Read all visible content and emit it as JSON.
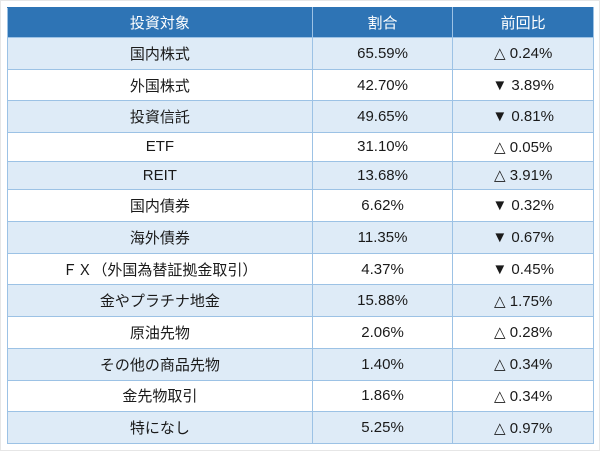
{
  "chart_data": {
    "type": "table",
    "columns": [
      "投資対象",
      "割合",
      "前回比"
    ],
    "rows": [
      {
        "name": "国内株式",
        "ratio": "65.59%",
        "change": "△ 0.24%",
        "ratio_value": 65.59,
        "change_value": 0.24,
        "direction": "up"
      },
      {
        "name": "外国株式",
        "ratio": "42.70%",
        "change": "▼ 3.89%",
        "ratio_value": 42.7,
        "change_value": -3.89,
        "direction": "down"
      },
      {
        "name": "投資信託",
        "ratio": "49.65%",
        "change": "▼ 0.81%",
        "ratio_value": 49.65,
        "change_value": -0.81,
        "direction": "down"
      },
      {
        "name": "ETF",
        "ratio": "31.10%",
        "change": "△ 0.05%",
        "ratio_value": 31.1,
        "change_value": 0.05,
        "direction": "up"
      },
      {
        "name": "REIT",
        "ratio": "13.68%",
        "change": "△ 3.91%",
        "ratio_value": 13.68,
        "change_value": 3.91,
        "direction": "up"
      },
      {
        "name": "国内債券",
        "ratio": "6.62%",
        "change": "▼ 0.32%",
        "ratio_value": 6.62,
        "change_value": -0.32,
        "direction": "down"
      },
      {
        "name": "海外債券",
        "ratio": "11.35%",
        "change": "▼ 0.67%",
        "ratio_value": 11.35,
        "change_value": -0.67,
        "direction": "down"
      },
      {
        "name": "ＦＸ（外国為替証拠金取引）",
        "ratio": "4.37%",
        "change": "▼ 0.45%",
        "ratio_value": 4.37,
        "change_value": -0.45,
        "direction": "down"
      },
      {
        "name": "金やプラチナ地金",
        "ratio": "15.88%",
        "change": "△ 1.75%",
        "ratio_value": 15.88,
        "change_value": 1.75,
        "direction": "up"
      },
      {
        "name": "原油先物",
        "ratio": "2.06%",
        "change": "△ 0.28%",
        "ratio_value": 2.06,
        "change_value": 0.28,
        "direction": "up"
      },
      {
        "name": "その他の商品先物",
        "ratio": "1.40%",
        "change": "△ 0.34%",
        "ratio_value": 1.4,
        "change_value": 0.34,
        "direction": "up"
      },
      {
        "name": "金先物取引",
        "ratio": "1.86%",
        "change": "△ 0.34%",
        "ratio_value": 1.86,
        "change_value": 0.34,
        "direction": "up"
      },
      {
        "name": "特になし",
        "ratio": "5.25%",
        "change": "△ 0.97%",
        "ratio_value": 5.25,
        "change_value": 0.97,
        "direction": "up"
      }
    ],
    "legend": {
      "up_symbol": "△",
      "down_symbol": "▼"
    }
  },
  "colors": {
    "header_bg": "#2e74b5",
    "header_text": "#ffffff",
    "row_alt_bg": "#deebf7",
    "row_bg": "#ffffff",
    "border": "#9cc2e5",
    "text": "#1a1a1a"
  }
}
